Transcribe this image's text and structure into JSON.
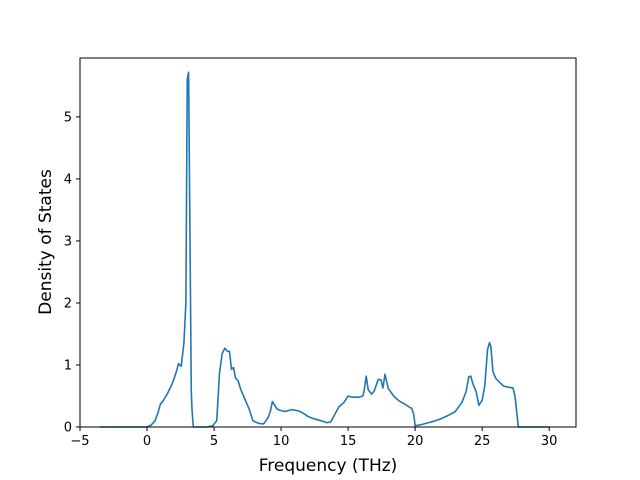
{
  "chart_data": {
    "type": "line",
    "title": "",
    "xlabel": "Frequency (THz)",
    "ylabel": "Density of States",
    "xlim": [
      -5,
      32
    ],
    "ylim": [
      0,
      5.95
    ],
    "x_ticks": [
      -5,
      0,
      5,
      10,
      15,
      20,
      25,
      30
    ],
    "x_tick_labels": [
      "−5",
      "0",
      "5",
      "10",
      "15",
      "20",
      "25",
      "30"
    ],
    "y_ticks": [
      0,
      1,
      2,
      3,
      4,
      5
    ],
    "y_tick_labels": [
      "0",
      "1",
      "2",
      "3",
      "4",
      "5"
    ],
    "grid": false,
    "legend": "none",
    "line_color": "#1f77b4",
    "series": [
      {
        "x": [
          -3.5,
          -1,
          0,
          0.3,
          0.6,
          0.8,
          1.0,
          1.2,
          1.5,
          1.8,
          2.0,
          2.2,
          2.35,
          2.55,
          2.75,
          2.9,
          3.0,
          3.1,
          3.2,
          3.3,
          3.35,
          3.45,
          4.0,
          4.5,
          4.9,
          5.2,
          5.4,
          5.6,
          5.8,
          6.0,
          6.15,
          6.3,
          6.45,
          6.6,
          6.8,
          7.0,
          7.3,
          7.6,
          7.9,
          8.3,
          8.7,
          9.0,
          9.2,
          9.35,
          9.5,
          9.7,
          9.9,
          10.3,
          10.8,
          11.3,
          11.6,
          12.0,
          12.5,
          13.0,
          13.4,
          13.7,
          14.0,
          14.3,
          14.7,
          15.0,
          15.3,
          15.8,
          16.1,
          16.2,
          16.35,
          16.5,
          16.75,
          16.95,
          17.25,
          17.45,
          17.6,
          17.75,
          18.0,
          18.4,
          18.8,
          19.3,
          19.65,
          19.75,
          19.9,
          20.0,
          20.5,
          21.0,
          21.5,
          22.0,
          22.5,
          23.0,
          23.5,
          23.8,
          24.0,
          24.15,
          24.3,
          24.55,
          24.75,
          25.0,
          25.2,
          25.4,
          25.55,
          25.65,
          25.8,
          26.0,
          26.3,
          26.6,
          27.0,
          27.3,
          27.45,
          27.55,
          27.7,
          30.0
        ],
        "y": [
          0.0,
          0.0,
          0.0,
          0.03,
          0.1,
          0.22,
          0.37,
          0.42,
          0.53,
          0.66,
          0.77,
          0.9,
          1.02,
          0.98,
          1.35,
          2.0,
          5.6,
          5.72,
          3.2,
          0.6,
          0.3,
          0.0,
          0.0,
          0.0,
          0.02,
          0.1,
          0.85,
          1.18,
          1.27,
          1.22,
          1.22,
          0.93,
          0.96,
          0.79,
          0.74,
          0.6,
          0.45,
          0.3,
          0.1,
          0.06,
          0.05,
          0.14,
          0.25,
          0.41,
          0.36,
          0.29,
          0.27,
          0.25,
          0.28,
          0.26,
          0.23,
          0.17,
          0.13,
          0.1,
          0.07,
          0.08,
          0.2,
          0.32,
          0.4,
          0.5,
          0.48,
          0.48,
          0.5,
          0.59,
          0.82,
          0.6,
          0.53,
          0.58,
          0.77,
          0.76,
          0.63,
          0.85,
          0.62,
          0.5,
          0.42,
          0.36,
          0.31,
          0.3,
          0.2,
          0.02,
          0.04,
          0.07,
          0.1,
          0.14,
          0.19,
          0.25,
          0.4,
          0.57,
          0.81,
          0.82,
          0.7,
          0.57,
          0.35,
          0.43,
          0.67,
          1.25,
          1.36,
          1.3,
          0.9,
          0.79,
          0.72,
          0.66,
          0.64,
          0.63,
          0.5,
          0.3,
          0.0,
          0.0
        ]
      }
    ]
  }
}
